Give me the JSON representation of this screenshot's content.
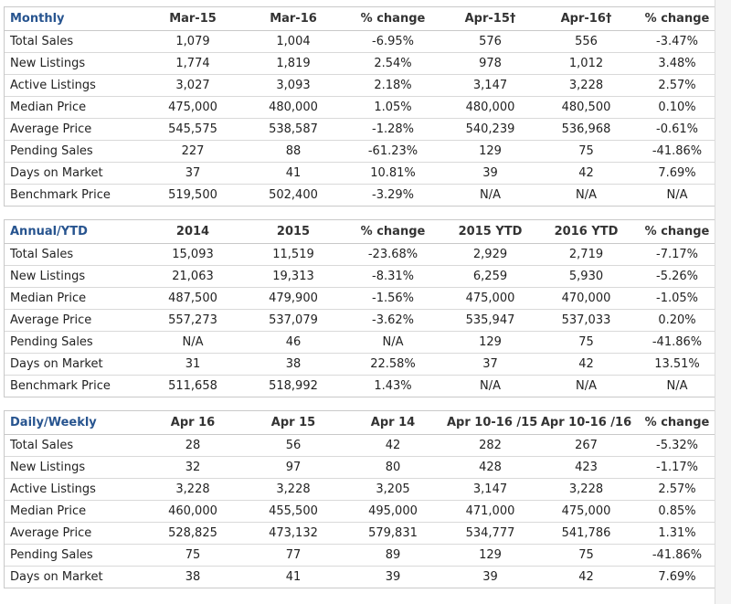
{
  "monthly": {
    "headers": [
      "Monthly",
      "Mar-15",
      "Mar-16",
      "% change",
      "Apr-15†",
      "Apr-16†",
      "% change"
    ],
    "rows": [
      [
        "Total Sales",
        "1,079",
        "1,004",
        "-6.95%",
        "576",
        "556",
        "-3.47%"
      ],
      [
        "New Listings",
        "1,774",
        "1,819",
        "2.54%",
        "978",
        "1,012",
        "3.48%"
      ],
      [
        "Active Listings",
        "3,027",
        "3,093",
        "2.18%",
        "3,147",
        "3,228",
        "2.57%"
      ],
      [
        "Median Price",
        "475,000",
        "480,000",
        "1.05%",
        "480,000",
        "480,500",
        "0.10%"
      ],
      [
        "Average Price",
        "545,575",
        "538,587",
        "-1.28%",
        "540,239",
        "536,968",
        "-0.61%"
      ],
      [
        "Pending Sales",
        "227",
        "88",
        "-61.23%",
        "129",
        "75",
        "-41.86%"
      ],
      [
        "Days on Market",
        "37",
        "41",
        "10.81%",
        "39",
        "42",
        "7.69%"
      ],
      [
        "Benchmark Price",
        "519,500",
        "502,400",
        "-3.29%",
        "N/A",
        "N/A",
        "N/A"
      ]
    ]
  },
  "annual": {
    "headers": [
      "Annual/YTD",
      "2014",
      "2015",
      "% change",
      "2015 YTD",
      "2016 YTD",
      "% change"
    ],
    "rows": [
      [
        "Total Sales",
        "15,093",
        "11,519",
        "-23.68%",
        "2,929",
        "2,719",
        "-7.17%"
      ],
      [
        "New Listings",
        "21,063",
        "19,313",
        "-8.31%",
        "6,259",
        "5,930",
        "-5.26%"
      ],
      [
        "Median Price",
        "487,500",
        "479,900",
        "-1.56%",
        "475,000",
        "470,000",
        "-1.05%"
      ],
      [
        "Average Price",
        "557,273",
        "537,079",
        "-3.62%",
        "535,947",
        "537,033",
        "0.20%"
      ],
      [
        "Pending Sales",
        "N/A",
        "46",
        "N/A",
        "129",
        "75",
        "-41.86%"
      ],
      [
        "Days on Market",
        "31",
        "38",
        "22.58%",
        "37",
        "42",
        "13.51%"
      ],
      [
        "Benchmark Price",
        "511,658",
        "518,992",
        "1.43%",
        "N/A",
        "N/A",
        "N/A"
      ]
    ]
  },
  "daily": {
    "headers": [
      "Daily/Weekly",
      "Apr 16",
      "Apr 15",
      "Apr 14",
      "Apr 10-16 /15",
      "Apr 10-16 /16",
      "% change"
    ],
    "rows": [
      [
        "Total Sales",
        "28",
        "56",
        "42",
        "282",
        "267",
        "-5.32%"
      ],
      [
        "New Listings",
        "32",
        "97",
        "80",
        "428",
        "423",
        "-1.17%"
      ],
      [
        "Active Listings",
        "3,228",
        "3,228",
        "3,205",
        "3,147",
        "3,228",
        "2.57%"
      ],
      [
        "Median Price",
        "460,000",
        "455,500",
        "495,000",
        "471,000",
        "475,000",
        "0.85%"
      ],
      [
        "Average Price",
        "528,825",
        "473,132",
        "579,831",
        "534,777",
        "541,786",
        "1.31%"
      ],
      [
        "Pending Sales",
        "75",
        "77",
        "89",
        "129",
        "75",
        "-41.86%"
      ],
      [
        "Days on Market",
        "38",
        "41",
        "39",
        "39",
        "42",
        "7.69%"
      ]
    ]
  },
  "colors": {
    "section_header": "#27548f",
    "border": "#c9c9c9"
  }
}
